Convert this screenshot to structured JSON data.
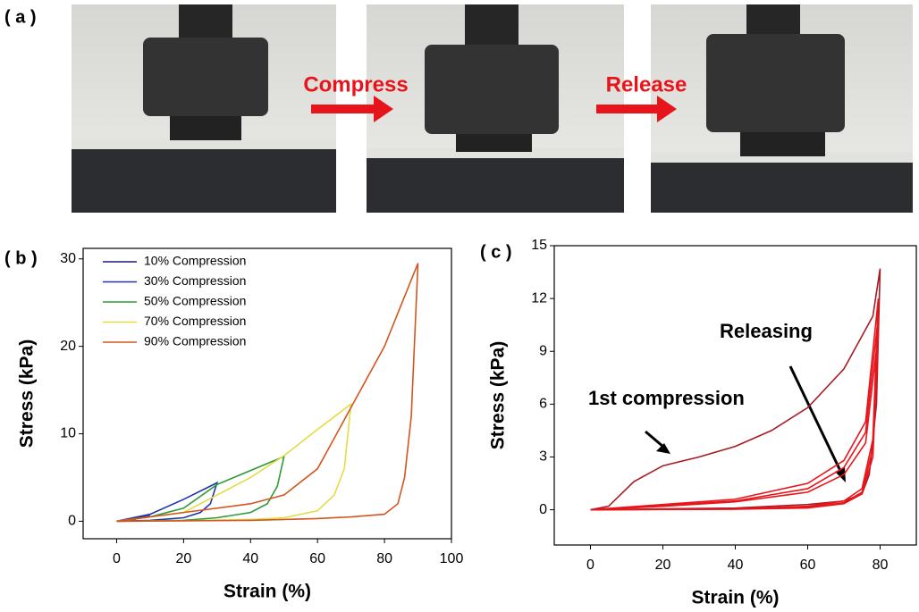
{
  "panel_a": {
    "label": "( a )",
    "steps": [
      "Compress",
      "Release"
    ]
  },
  "chart_data": [
    {
      "type": "line",
      "label": "( b )",
      "x_label": "Strain (%)",
      "y_label": "Stress (kPa)",
      "xlim": [
        -10,
        100
      ],
      "xticks": [
        0,
        20,
        40,
        60,
        80,
        100
      ],
      "ylim": [
        -2,
        31.2
      ],
      "yticks": [
        0,
        10,
        20,
        30
      ],
      "legend": "top-left",
      "series": [
        {
          "name": "10% Compression",
          "color": "#1b1b7a",
          "x": [
            0,
            5,
            10,
            5,
            0
          ],
          "values": [
            0,
            0.3,
            0.6,
            0.2,
            0
          ]
        },
        {
          "name": "30% Compression",
          "color": "#2233a8",
          "x": [
            0,
            10,
            20,
            30,
            28,
            25,
            20,
            10,
            0
          ],
          "values": [
            0,
            0.8,
            2.5,
            4.4,
            2,
            1,
            0.4,
            0.1,
            0
          ]
        },
        {
          "name": "50% Compression",
          "color": "#2e9a35",
          "x": [
            0,
            10,
            20,
            30,
            40,
            50,
            48,
            45,
            40,
            30,
            20,
            0
          ],
          "values": [
            0,
            0.5,
            1.5,
            4.2,
            5.8,
            7.4,
            4,
            2,
            1,
            0.4,
            0.1,
            0
          ]
        },
        {
          "name": "70% Compression",
          "color": "#e3dc45",
          "x": [
            0,
            20,
            30,
            40,
            50,
            60,
            70,
            68,
            65,
            60,
            50,
            40,
            20,
            0
          ],
          "values": [
            0,
            1,
            3,
            5,
            7.5,
            10.5,
            13.4,
            6,
            3,
            1.2,
            0.4,
            0.2,
            0.05,
            0
          ]
        },
        {
          "name": "90% Compression",
          "color": "#d2561f",
          "x": [
            0,
            20,
            40,
            50,
            60,
            70,
            80,
            90,
            88,
            86,
            84,
            80,
            70,
            60,
            40,
            0
          ],
          "values": [
            0,
            1,
            2,
            3,
            6,
            13,
            20,
            29.5,
            12,
            5,
            2,
            0.8,
            0.5,
            0.3,
            0.1,
            0
          ]
        }
      ]
    },
    {
      "type": "line",
      "label": "( c )",
      "x_label": "Strain (%)",
      "y_label": "Stress (kPa)",
      "xlim": [
        -10,
        90
      ],
      "xticks": [
        0,
        20,
        40,
        60,
        80
      ],
      "ylim": [
        -2,
        15
      ],
      "yticks": [
        0,
        3,
        6,
        9,
        12,
        15
      ],
      "annotations": [
        "Releasing",
        "1st compression"
      ],
      "series": [
        {
          "color": "#a51c24",
          "x": [
            0,
            5,
            8,
            12,
            20,
            30,
            40,
            50,
            60,
            70,
            78,
            80,
            79,
            77,
            75,
            70,
            60,
            40,
            20,
            0
          ],
          "values": [
            0,
            0.2,
            0.8,
            1.6,
            2.5,
            3.0,
            3.6,
            4.5,
            5.8,
            8,
            11,
            13.7,
            6,
            2,
            0.9,
            0.5,
            0.3,
            0.1,
            0.05,
            0
          ]
        },
        {
          "color": "#e8141b",
          "x": [
            0,
            20,
            40,
            60,
            70,
            76,
            79.5,
            78,
            75,
            70,
            60,
            40,
            0
          ],
          "values": [
            0,
            0.3,
            0.6,
            1.5,
            2.8,
            5,
            12,
            4,
            1.2,
            0.5,
            0.2,
            0.05,
            0
          ]
        },
        {
          "color": "#e8141b",
          "x": [
            0,
            20,
            40,
            60,
            70,
            76,
            79.5,
            78,
            75,
            70,
            60,
            40,
            0
          ],
          "values": [
            0,
            0.25,
            0.5,
            1.2,
            2.4,
            4.4,
            11,
            3.5,
            1,
            0.4,
            0.15,
            0.04,
            0
          ]
        },
        {
          "color": "#e8141b",
          "x": [
            0,
            20,
            40,
            60,
            70,
            76,
            79.5,
            78,
            75,
            70,
            60,
            40,
            0
          ],
          "values": [
            0,
            0.2,
            0.45,
            1.0,
            2.0,
            3.8,
            10,
            3,
            0.9,
            0.35,
            0.1,
            0.03,
            0
          ]
        }
      ]
    }
  ]
}
